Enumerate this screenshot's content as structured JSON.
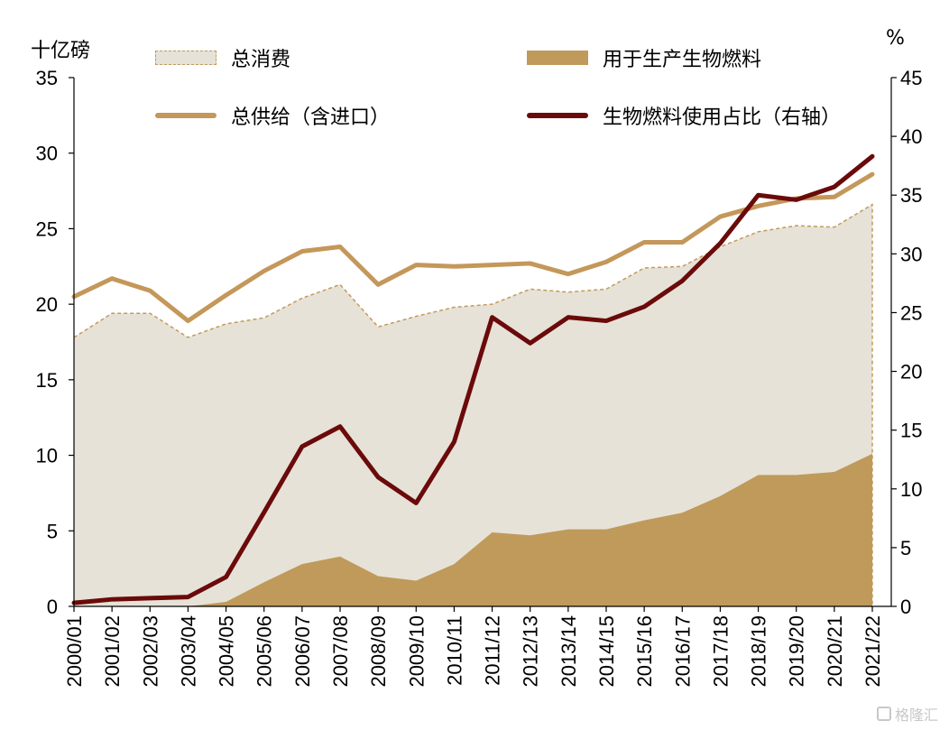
{
  "units": {
    "left": "十亿磅",
    "right": "%"
  },
  "legend": [
    {
      "label": "总消费",
      "kind": "area-dashed",
      "color": "#e6e2d8",
      "edge": "#c49a5a"
    },
    {
      "label": "用于生产生物燃料",
      "kind": "area-solid",
      "color": "#bf9a5a"
    },
    {
      "label": "总供给（含进口）",
      "kind": "line",
      "color": "#c4975a"
    },
    {
      "label": "生物燃料使用占比（右轴）",
      "kind": "line",
      "color": "#6b0a0a"
    }
  ],
  "watermark": {
    "text": "格隆汇"
  },
  "chart_data": {
    "type": "area",
    "categories": [
      "2000/01",
      "2001/02",
      "2002/03",
      "2003/04",
      "2004/05",
      "2005/06",
      "2006/07",
      "2007/08",
      "2008/09",
      "2009/10",
      "2010/11",
      "2011/12",
      "2012/13",
      "2013/14",
      "2014/15",
      "2015/16",
      "2016/17",
      "2017/18",
      "2018/19",
      "2019/20",
      "2020/21",
      "2021/22"
    ],
    "left_axis": {
      "min": 0,
      "max": 35,
      "ticks": [
        0,
        5,
        10,
        15,
        20,
        25,
        30,
        35
      ]
    },
    "right_axis": {
      "min": 0,
      "max": 45,
      "ticks": [
        0,
        5,
        10,
        15,
        20,
        25,
        30,
        35,
        40,
        45
      ]
    },
    "grid": false,
    "series": [
      {
        "name": "总消费",
        "type": "area",
        "axis": "left",
        "values": [
          17.8,
          19.4,
          19.4,
          17.8,
          18.7,
          19.1,
          20.4,
          21.3,
          18.5,
          19.2,
          19.8,
          20.0,
          21.0,
          20.8,
          21.0,
          22.4,
          22.5,
          23.8,
          24.8,
          25.2,
          25.1,
          26.6
        ]
      },
      {
        "name": "用于生产生物燃料",
        "type": "area",
        "axis": "left",
        "values": [
          0.0,
          0.0,
          0.0,
          0.0,
          0.3,
          1.6,
          2.8,
          3.3,
          2.0,
          1.7,
          2.8,
          4.9,
          4.7,
          5.1,
          5.1,
          5.7,
          6.2,
          7.3,
          8.7,
          8.7,
          8.9,
          10.1
        ]
      },
      {
        "name": "总供给（含进口）",
        "type": "line",
        "axis": "left",
        "values": [
          20.5,
          21.7,
          20.9,
          18.9,
          20.6,
          22.2,
          23.5,
          23.8,
          21.3,
          22.6,
          22.5,
          22.6,
          22.7,
          22.0,
          22.8,
          24.1,
          24.1,
          25.8,
          26.5,
          27.0,
          27.1,
          28.6
        ]
      },
      {
        "name": "生物燃料使用占比（右轴）",
        "type": "line",
        "axis": "right",
        "values": [
          0.3,
          0.6,
          0.7,
          0.8,
          2.5,
          8.0,
          13.6,
          15.3,
          11.0,
          8.8,
          14.0,
          24.6,
          22.4,
          24.6,
          24.3,
          25.5,
          27.7,
          30.9,
          35.0,
          34.6,
          35.7,
          38.3
        ]
      }
    ]
  }
}
